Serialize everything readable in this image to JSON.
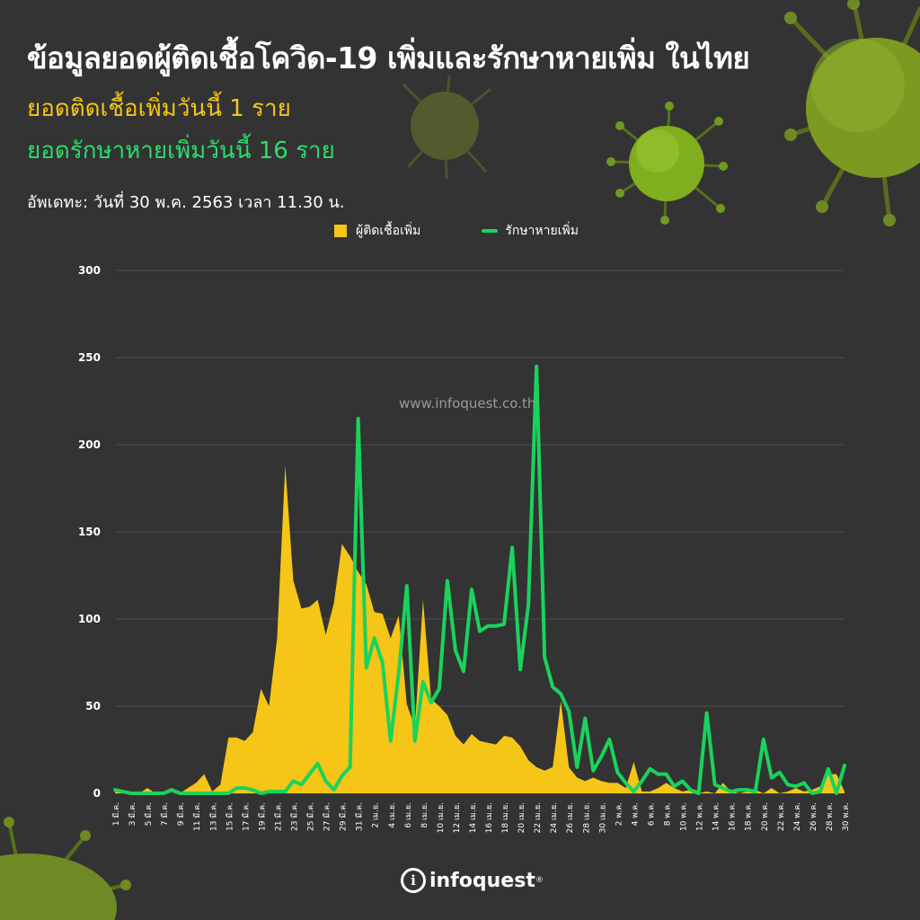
{
  "header": {
    "title": "ข้อมูลยอดผู้ติดเชื้อโควิด-19 เพิ่มและรักษาหายเพิ่ม ในไทย",
    "new_cases_today": "ยอดติดเชื้อเพิ่มวันนี้ 1 ราย",
    "recovered_today": "ยอดรักษาหายเพิ่มวันนี้ 16 ราย",
    "updated": "อัพเดทะ: วันที่ 30 พ.ค. 2563 เวลา 11.30 น."
  },
  "watermark": "www.infoquest.co.th",
  "brand": {
    "name": "infoquest",
    "mark": "i",
    "trademark": "®"
  },
  "colors": {
    "background": "#333333",
    "cases": "#f5c518",
    "recovered": "#19d35c",
    "grid": "#4c4c4c"
  },
  "chart_data": {
    "type": "area",
    "legend_position": "top",
    "grid": true,
    "ylim": [
      0,
      300
    ],
    "yticks": [
      0,
      50,
      100,
      150,
      200,
      250,
      300
    ],
    "x": [
      "1 มี.ค.",
      "2 มี.ค.",
      "3 มี.ค.",
      "4 มี.ค.",
      "5 มี.ค.",
      "6 มี.ค.",
      "7 มี.ค.",
      "8 มี.ค.",
      "9 มี.ค.",
      "10 มี.ค.",
      "11 มี.ค.",
      "12 มี.ค.",
      "13 มี.ค.",
      "14 มี.ค.",
      "15 มี.ค.",
      "16 มี.ค.",
      "17 มี.ค.",
      "18 มี.ค.",
      "19 มี.ค.",
      "20 มี.ค.",
      "21 มี.ค.",
      "22 มี.ค.",
      "23 มี.ค.",
      "24 มี.ค.",
      "25 มี.ค.",
      "26 มี.ค.",
      "27 มี.ค.",
      "28 มี.ค.",
      "29 มี.ค.",
      "30 มี.ค.",
      "31 มี.ค.",
      "1 เม.ย.",
      "2 เม.ย.",
      "3 เม.ย.",
      "4 เม.ย.",
      "5 เม.ย.",
      "6 เม.ย.",
      "7 เม.ย.",
      "8 เม.ย.",
      "9 เม.ย.",
      "10 เม.ย.",
      "11 เม.ย.",
      "12 เม.ย.",
      "13 เม.ย.",
      "14 เม.ย.",
      "15 เม.ย.",
      "16 เม.ย.",
      "17 เม.ย.",
      "18 เม.ย.",
      "19 เม.ย.",
      "20 เม.ย.",
      "21 เม.ย.",
      "22 เม.ย.",
      "23 เม.ย.",
      "24 เม.ย.",
      "25 เม.ย.",
      "26 เม.ย.",
      "27 เม.ย.",
      "28 เม.ย.",
      "29 เม.ย.",
      "30 เม.ย.",
      "1 พ.ค.",
      "2 พ.ค.",
      "3 พ.ค.",
      "4 พ.ค.",
      "5 พ.ค.",
      "6 พ.ค.",
      "7 พ.ค.",
      "8 พ.ค.",
      "9 พ.ค.",
      "10 พ.ค.",
      "11 พ.ค.",
      "12 พ.ค.",
      "13 พ.ค.",
      "14 พ.ค.",
      "15 พ.ค.",
      "16 พ.ค.",
      "17 พ.ค.",
      "18 พ.ค.",
      "19 พ.ค.",
      "20 พ.ค.",
      "21 พ.ค.",
      "22 พ.ค.",
      "23 พ.ค.",
      "24 พ.ค.",
      "25 พ.ค.",
      "26 พ.ค.",
      "27 พ.ค.",
      "28 พ.ค.",
      "29 พ.ค.",
      "30 พ.ค."
    ],
    "xtick_labels": [
      "1 มี.ค.",
      "3 มี.ค.",
      "5 มี.ค.",
      "7 มี.ค.",
      "9 มี.ค.",
      "11 มี.ค.",
      "13 มี.ค.",
      "15 มี.ค.",
      "17 มี.ค.",
      "19 มี.ค.",
      "21 มี.ค.",
      "23 มี.ค.",
      "25 มี.ค.",
      "27 มี.ค.",
      "29 มี.ค.",
      "31 มี.ค.",
      "2 เม.ย.",
      "4 เม.ย.",
      "6 เม.ย.",
      "8 เม.ย.",
      "10 เม.ย.",
      "12 เม.ย.",
      "14 เม.ย.",
      "16 เม.ย.",
      "18 เม.ย.",
      "20 เม.ย.",
      "22 เม.ย.",
      "24 เม.ย.",
      "26 เม.ย.",
      "28 เม.ย.",
      "30 เม.ย.",
      "2 พ.ค.",
      "4 พ.ค.",
      "6 พ.ค.",
      "8 พ.ค.",
      "10 พ.ค.",
      "12 พ.ค.",
      "14 พ.ค.",
      "16 พ.ค.",
      "18 พ.ค.",
      "20 พ.ค.",
      "22 พ.ค.",
      "24 พ.ค.",
      "26 พ.ค.",
      "28 พ.ค.",
      "30 พ.ค."
    ],
    "series": [
      {
        "name": "ผู้ติดเชื้อเพิ่ม",
        "type": "area",
        "values": [
          1,
          0,
          0,
          0,
          3,
          0,
          0,
          0,
          0,
          3,
          6,
          11,
          1,
          5,
          32,
          32,
          30,
          35,
          60,
          50,
          89,
          188,
          122,
          106,
          107,
          111,
          91,
          109,
          143,
          136,
          127,
          120,
          104,
          103,
          89,
          102,
          51,
          38,
          111,
          54,
          50,
          45,
          33,
          28,
          34,
          30,
          29,
          28,
          33,
          32,
          27,
          19,
          15,
          13,
          15,
          53,
          15,
          9,
          7,
          9,
          7,
          6,
          6,
          3,
          18,
          1,
          1,
          3,
          6,
          3,
          1,
          2,
          0,
          1,
          0,
          6,
          1,
          0,
          1,
          2,
          0,
          3,
          0,
          1,
          3,
          1,
          2,
          4,
          11,
          11,
          1
        ]
      },
      {
        "name": "รักษาหายเพิ่ม",
        "type": "line",
        "values": [
          2,
          1,
          0,
          0,
          0,
          0,
          0,
          2,
          0,
          0,
          0,
          0,
          0,
          0,
          0,
          3,
          3,
          2,
          0,
          1,
          1,
          1,
          7,
          5,
          11,
          17,
          7,
          2,
          10,
          15,
          215,
          72,
          89,
          75,
          30,
          69,
          119,
          30,
          64,
          52,
          60,
          122,
          82,
          70,
          117,
          93,
          96,
          96,
          97,
          141,
          71,
          108,
          245,
          78,
          61,
          57,
          47,
          15,
          43,
          13,
          21,
          31,
          12,
          6,
          1,
          7,
          14,
          11,
          11,
          4,
          7,
          2,
          0,
          46,
          5,
          3,
          1,
          2,
          2,
          1,
          31,
          9,
          12,
          5,
          4,
          6,
          0,
          1,
          14,
          0,
          16
        ]
      }
    ]
  }
}
